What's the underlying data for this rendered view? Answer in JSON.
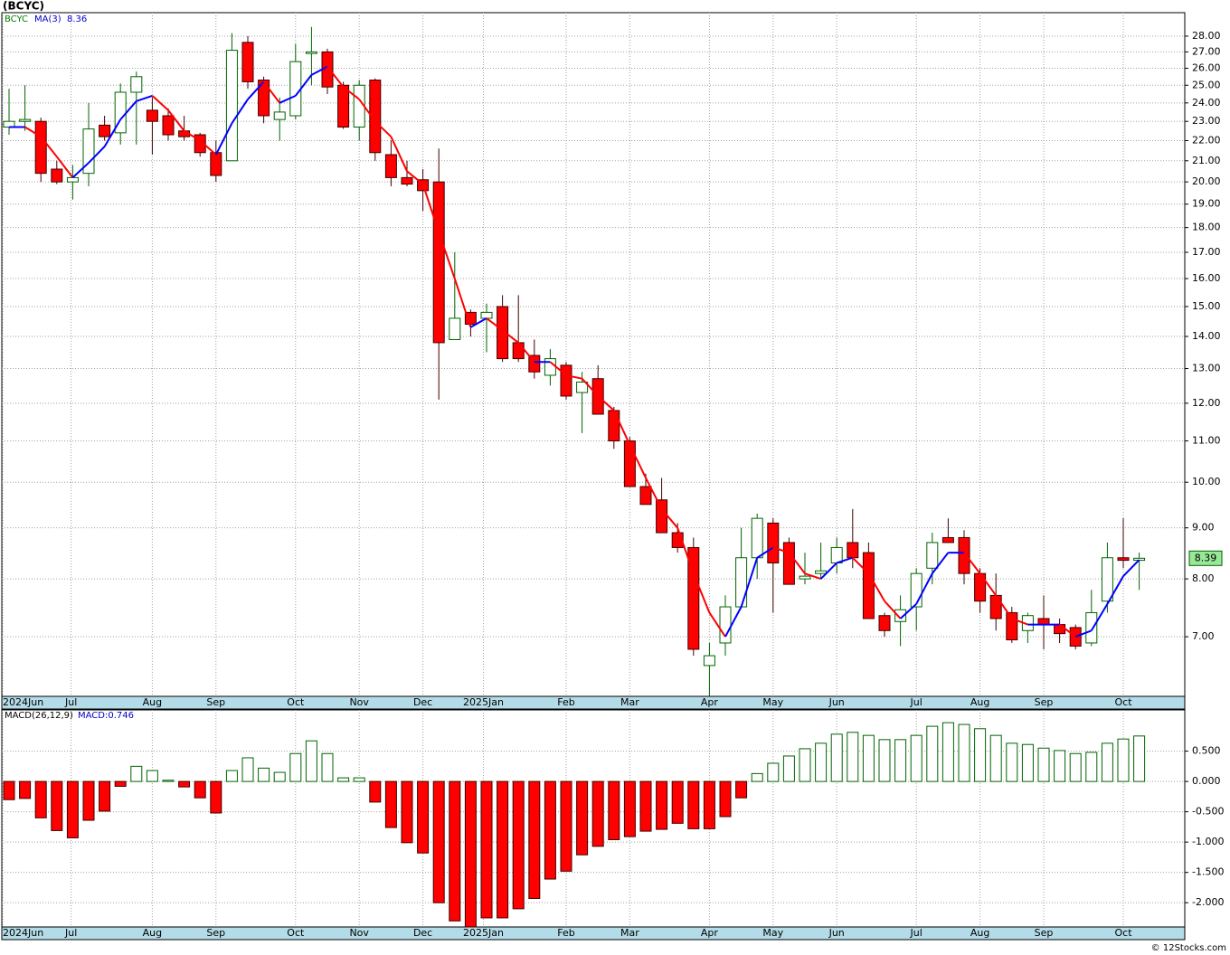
{
  "title": "(BCYC)",
  "copyright": "© 12Stocks.com",
  "chart_data": [
    {
      "type": "candlestick",
      "name": "BCYC",
      "log_scale": true,
      "grid": true,
      "up_color": "#006400",
      "down_color": "#ff0000",
      "open": [
        22.7,
        23.0,
        23.0,
        20.6,
        20.0,
        20.4,
        22.8,
        22.4,
        24.6,
        23.6,
        23.3,
        22.5,
        22.3,
        21.4,
        21.0,
        27.6,
        25.3,
        23.1,
        23.3,
        26.9,
        27.0,
        25.0,
        22.7,
        25.3,
        21.3,
        20.2,
        20.1,
        20.0,
        13.9,
        14.8,
        14.6,
        15.0,
        13.8,
        13.4,
        12.8,
        13.1,
        12.3,
        12.7,
        11.8,
        11.0,
        9.9,
        9.6,
        8.9,
        8.6,
        6.55,
        6.9,
        7.5,
        8.4,
        9.1,
        8.7,
        8.0,
        8.1,
        8.3,
        8.7,
        8.5,
        7.35,
        7.25,
        7.5,
        8.2,
        8.8,
        8.8,
        8.1,
        7.7,
        7.4,
        7.1,
        7.3,
        7.2,
        7.15,
        6.9,
        7.6,
        8.4,
        8.35
      ],
      "high": [
        24.8,
        25.0,
        23.2,
        21.0,
        20.8,
        24.0,
        23.3,
        25.1,
        25.8,
        24.3,
        23.7,
        23.3,
        22.4,
        22.0,
        28.2,
        28.0,
        25.5,
        24.3,
        27.5,
        28.6,
        27.2,
        25.2,
        25.3,
        25.4,
        22.0,
        21.0,
        20.6,
        21.6,
        17.0,
        14.9,
        15.1,
        15.4,
        15.4,
        13.9,
        13.6,
        13.2,
        12.9,
        13.1,
        11.9,
        11.1,
        10.2,
        10.1,
        9.1,
        8.8,
        6.9,
        7.7,
        9.0,
        9.3,
        9.2,
        8.8,
        8.5,
        8.7,
        8.8,
        9.4,
        8.7,
        7.4,
        7.7,
        8.2,
        8.9,
        9.2,
        8.95,
        8.2,
        8.1,
        7.5,
        7.4,
        7.7,
        7.3,
        7.2,
        7.8,
        8.7,
        9.2,
        8.5
      ],
      "low": [
        22.3,
        22.5,
        20.0,
        19.9,
        19.2,
        19.8,
        22.0,
        21.8,
        21.8,
        21.3,
        22.0,
        22.0,
        21.2,
        20.0,
        21.0,
        24.8,
        22.9,
        22.0,
        23.1,
        25.0,
        24.5,
        22.6,
        22.0,
        21.0,
        19.8,
        19.8,
        18.7,
        12.1,
        13.9,
        14.0,
        13.5,
        13.2,
        13.2,
        12.7,
        12.5,
        12.1,
        11.2,
        11.7,
        10.8,
        9.9,
        9.5,
        8.9,
        8.5,
        6.7,
        6.1,
        6.7,
        7.5,
        8.0,
        7.4,
        7.9,
        7.9,
        8.0,
        8.1,
        8.2,
        7.3,
        7.0,
        6.85,
        7.1,
        7.9,
        8.7,
        7.9,
        7.4,
        7.1,
        6.9,
        6.9,
        6.8,
        6.9,
        6.8,
        6.85,
        7.4,
        8.2,
        7.8
      ],
      "close": [
        23.0,
        23.1,
        20.4,
        20.0,
        20.2,
        22.6,
        22.2,
        24.6,
        25.5,
        23.0,
        22.3,
        22.2,
        21.4,
        20.3,
        27.1,
        25.2,
        23.3,
        23.5,
        26.4,
        27.0,
        24.9,
        22.7,
        25.0,
        21.4,
        20.2,
        19.9,
        19.6,
        13.8,
        14.6,
        14.4,
        14.8,
        13.3,
        13.3,
        12.9,
        13.3,
        12.2,
        12.6,
        11.7,
        11.0,
        9.9,
        9.5,
        8.9,
        8.6,
        6.8,
        6.7,
        7.5,
        8.4,
        9.2,
        8.3,
        7.9,
        8.05,
        8.15,
        8.6,
        8.4,
        7.3,
        7.1,
        7.45,
        8.1,
        8.7,
        8.7,
        8.1,
        7.6,
        7.3,
        6.95,
        7.35,
        7.2,
        7.05,
        6.85,
        7.4,
        8.4,
        8.35,
        8.39
      ],
      "series": [
        {
          "name": "MA(3)",
          "value_label": "8.36",
          "up_color": "#0000ff",
          "down_color": "#ff0000",
          "values": [
            22.7,
            22.7,
            22.2,
            21.2,
            20.2,
            20.9,
            21.7,
            23.1,
            24.1,
            24.4,
            23.6,
            22.5,
            22.0,
            21.3,
            22.9,
            24.2,
            25.2,
            24.0,
            24.4,
            25.6,
            26.1,
            24.9,
            24.2,
            23.0,
            22.2,
            20.5,
            19.9,
            17.8,
            16.0,
            14.3,
            14.6,
            14.2,
            13.8,
            13.2,
            13.2,
            12.8,
            12.7,
            12.2,
            11.8,
            10.9,
            10.1,
            9.4,
            9.0,
            8.1,
            7.4,
            7.0,
            7.5,
            8.4,
            8.6,
            8.5,
            8.1,
            8.0,
            8.3,
            8.4,
            8.1,
            7.6,
            7.3,
            7.55,
            8.1,
            8.5,
            8.5,
            8.1,
            7.7,
            7.3,
            7.2,
            7.2,
            7.2,
            7.0,
            7.1,
            7.55,
            8.05,
            8.36
          ]
        }
      ],
      "last": {
        "value": 8.39,
        "label": "8.39"
      },
      "ylim": [
        6.1,
        29.56
      ],
      "yticks": [
        {
          "value": 7,
          "label": "7.00"
        },
        {
          "value": 8,
          "label": "8.00"
        },
        {
          "value": 9,
          "label": "9.00"
        },
        {
          "value": 10,
          "label": "10.00"
        },
        {
          "value": 11,
          "label": "11.00"
        },
        {
          "value": 12,
          "label": "12.00"
        },
        {
          "value": 13,
          "label": "13.00"
        },
        {
          "value": 14,
          "label": "14.00"
        },
        {
          "value": 15,
          "label": "15.00"
        },
        {
          "value": 16,
          "label": "16.00"
        },
        {
          "value": 17,
          "label": "17.00"
        },
        {
          "value": 18,
          "label": "18.00"
        },
        {
          "value": 19,
          "label": "19.00"
        },
        {
          "value": 20,
          "label": "20.00"
        },
        {
          "value": 21,
          "label": "21.00"
        },
        {
          "value": 22,
          "label": "22.00"
        },
        {
          "value": 23,
          "label": "23.00"
        },
        {
          "value": 24,
          "label": "24.00"
        },
        {
          "value": 25,
          "label": "25.00"
        },
        {
          "value": 26,
          "label": "26.00"
        },
        {
          "value": 27,
          "label": "27.00"
        },
        {
          "value": 28,
          "label": "28.00"
        }
      ],
      "xticks": [
        {
          "value": -0.4,
          "label": "2024Jun"
        },
        {
          "value": 3.9,
          "label": "Jul"
        },
        {
          "value": 9,
          "label": "Aug"
        },
        {
          "value": 13,
          "label": "Sep"
        },
        {
          "value": 18,
          "label": "Oct"
        },
        {
          "value": 22,
          "label": "Nov"
        },
        {
          "value": 26,
          "label": "Dec"
        },
        {
          "value": 29.8,
          "label": "2025Jan"
        },
        {
          "value": 35,
          "label": "Feb"
        },
        {
          "value": 39,
          "label": "Mar"
        },
        {
          "value": 44,
          "label": "Apr"
        },
        {
          "value": 48,
          "label": "May"
        },
        {
          "value": 52,
          "label": "Jun"
        },
        {
          "value": 57,
          "label": "Jul"
        },
        {
          "value": 61,
          "label": "Aug"
        },
        {
          "value": 65,
          "label": "Sep"
        },
        {
          "value": 70,
          "label": "Oct"
        }
      ]
    },
    {
      "type": "bar",
      "indicator": "MACD(26,12,9)",
      "readout": "MACD:0.746",
      "grid": true,
      "up_color": "#006400",
      "down_color": "#ff0000",
      "values": [
        -0.3,
        -0.28,
        -0.6,
        -0.81,
        -0.93,
        -0.64,
        -0.49,
        -0.08,
        0.25,
        0.18,
        0.02,
        -0.09,
        -0.27,
        -0.52,
        0.18,
        0.39,
        0.22,
        0.15,
        0.46,
        0.67,
        0.46,
        0.06,
        0.06,
        -0.34,
        -0.76,
        -1.01,
        -1.18,
        -2.0,
        -2.3,
        -2.4,
        -2.25,
        -2.25,
        -2.1,
        -1.93,
        -1.61,
        -1.48,
        -1.21,
        -1.07,
        -0.96,
        -0.91,
        -0.82,
        -0.79,
        -0.69,
        -0.78,
        -0.78,
        -0.58,
        -0.27,
        0.13,
        0.3,
        0.42,
        0.54,
        0.63,
        0.78,
        0.81,
        0.76,
        0.69,
        0.69,
        0.76,
        0.91,
        0.97,
        0.94,
        0.87,
        0.76,
        0.63,
        0.61,
        0.55,
        0.51,
        0.46,
        0.48,
        0.63,
        0.7,
        0.75
      ],
      "ylim": [
        -2.4,
        1.18
      ],
      "yticks": [
        {
          "value": 0.5,
          "label": "0.500"
        },
        {
          "value": 0,
          "label": "0.000"
        },
        {
          "value": -0.5,
          "label": "-0.500"
        },
        {
          "value": -1,
          "label": "-1.000"
        },
        {
          "value": -1.5,
          "label": "-1.500"
        },
        {
          "value": -2,
          "label": "-2.000"
        }
      ],
      "xticks": [
        {
          "value": -0.4,
          "label": "2024Jun"
        },
        {
          "value": 3.9,
          "label": "Jul"
        },
        {
          "value": 9,
          "label": "Aug"
        },
        {
          "value": 13,
          "label": "Sep"
        },
        {
          "value": 18,
          "label": "Oct"
        },
        {
          "value": 22,
          "label": "Nov"
        },
        {
          "value": 26,
          "label": "Dec"
        },
        {
          "value": 29.8,
          "label": "2025Jan"
        },
        {
          "value": 35,
          "label": "Feb"
        },
        {
          "value": 39,
          "label": "Mar"
        },
        {
          "value": 44,
          "label": "Apr"
        },
        {
          "value": 48,
          "label": "May"
        },
        {
          "value": 52,
          "label": "Jun"
        },
        {
          "value": 57,
          "label": "Jul"
        },
        {
          "value": 61,
          "label": "Aug"
        },
        {
          "value": 65,
          "label": "Sep"
        },
        {
          "value": 70,
          "label": "Oct"
        }
      ]
    }
  ]
}
